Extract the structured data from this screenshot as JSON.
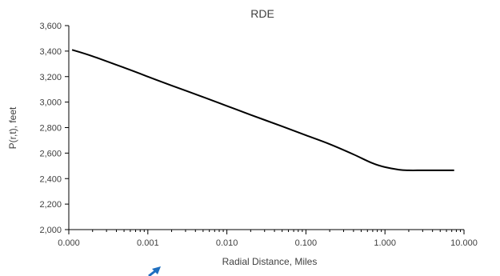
{
  "chart_data": {
    "type": "line",
    "title": "RDE",
    "xlabel": "Radial Distance, Miles",
    "ylabel": "P(r,t), feet",
    "x_scale": "log",
    "xlim": [
      0.0001,
      10
    ],
    "ylim": [
      2000,
      3600
    ],
    "x_ticks": [
      {
        "value": 0.0001,
        "label": "0.000"
      },
      {
        "value": 0.001,
        "label": "0.001"
      },
      {
        "value": 0.01,
        "label": "0.010"
      },
      {
        "value": 0.1,
        "label": "0.100"
      },
      {
        "value": 1,
        "label": "1.000"
      },
      {
        "value": 10,
        "label": "10.000"
      }
    ],
    "y_ticks": [
      {
        "value": 2000,
        "label": "2,000"
      },
      {
        "value": 2200,
        "label": "2,200"
      },
      {
        "value": 2400,
        "label": "2,400"
      },
      {
        "value": 2600,
        "label": "2,600"
      },
      {
        "value": 2800,
        "label": "2,800"
      },
      {
        "value": 3000,
        "label": "3,000"
      },
      {
        "value": 3200,
        "label": "3,200"
      },
      {
        "value": 3400,
        "label": "3,400"
      },
      {
        "value": 3600,
        "label": "3,600"
      }
    ],
    "grid": false,
    "legend": "none",
    "series": [
      {
        "color": "#000000",
        "x": [
          0.00011,
          0.0002,
          0.0005,
          0.001,
          0.002,
          0.005,
          0.01,
          0.02,
          0.05,
          0.1,
          0.2,
          0.4,
          0.7,
          1.0,
          1.5,
          2.0,
          3.0,
          5.0,
          7.5
        ],
        "y": [
          3410,
          3360,
          3270,
          3200,
          3130,
          3040,
          2970,
          2900,
          2810,
          2740,
          2670,
          2590,
          2520,
          2490,
          2470,
          2465,
          2465,
          2465,
          2465
        ]
      }
    ]
  },
  "colors": {
    "axis": "#000000",
    "text": "#404040",
    "annotation_arrow": "#1f6fbf"
  }
}
